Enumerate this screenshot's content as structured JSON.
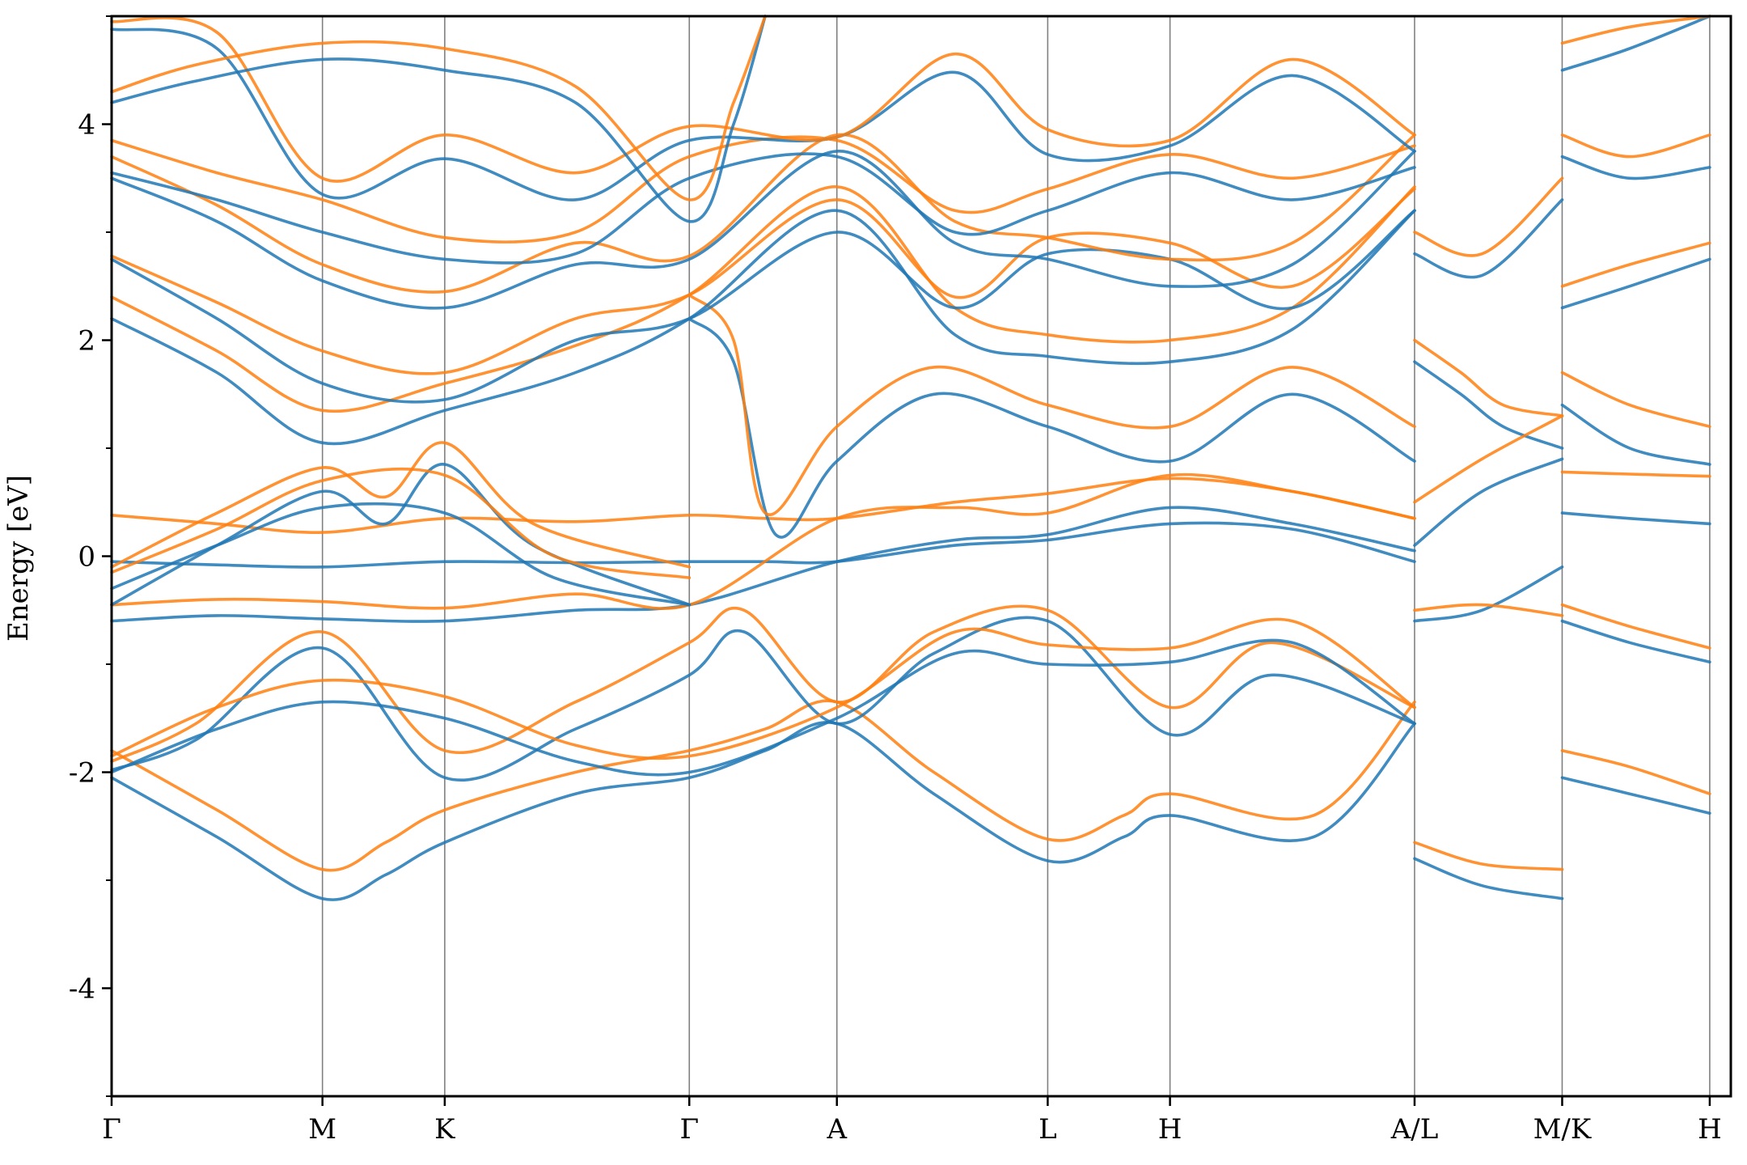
{
  "chart_data": {
    "type": "line",
    "title": "",
    "ylabel": "Energy [eV]",
    "xlabel": "",
    "ylim": [
      -5,
      5
    ],
    "yticks": [
      -4,
      -2,
      0,
      2,
      4
    ],
    "ytick_labels": [
      "-4",
      "-2",
      "0",
      "2",
      "4"
    ],
    "grid": "vertical lines at high-symmetry points",
    "legend": "none",
    "x_range": [
      0,
      7.68
    ],
    "kpoints": [
      {
        "label": "Γ",
        "x": 0.0
      },
      {
        "label": "M",
        "x": 1.0
      },
      {
        "label": "K",
        "x": 1.58
      },
      {
        "label": "Γ",
        "x": 2.74
      },
      {
        "label": "A",
        "x": 3.44
      },
      {
        "label": "L",
        "x": 4.44
      },
      {
        "label": "H",
        "x": 5.02
      },
      {
        "label": "A/L",
        "x": 6.18
      },
      {
        "label": "M/K",
        "x": 6.88
      },
      {
        "label": "H",
        "x": 7.58
      }
    ],
    "colors": {
      "spin_1": "#1f77b4",
      "spin_2": "#ff7f0e",
      "kpath_line": "#808080",
      "axis": "#000000"
    },
    "series": [
      {
        "color": "#1f77b4",
        "x": [
          0.0,
          0.5,
          1.0,
          1.3,
          1.58,
          2.2,
          2.74,
          3.1,
          3.44,
          3.9,
          4.44,
          4.8,
          5.02,
          5.7,
          6.18
        ],
        "y": [
          -2.05,
          -2.6,
          -3.17,
          -2.95,
          -2.65,
          -2.2,
          -2.05,
          -1.8,
          -1.55,
          -2.2,
          -2.82,
          -2.6,
          -2.4,
          -2.6,
          -1.55
        ]
      },
      {
        "color": "#ff7f0e",
        "x": [
          0.0,
          0.5,
          1.0,
          1.3,
          1.58,
          2.2,
          2.74,
          3.1,
          3.44,
          3.9,
          4.44,
          4.8,
          5.02,
          5.7,
          6.18
        ],
        "y": [
          -1.8,
          -2.35,
          -2.9,
          -2.65,
          -2.35,
          -2.0,
          -1.8,
          -1.6,
          -1.35,
          -2.0,
          -2.62,
          -2.4,
          -2.2,
          -2.4,
          -1.35
        ]
      },
      {
        "color": "#1f77b4",
        "x": [
          0.0,
          0.4,
          1.0,
          1.58,
          2.2,
          2.74,
          3.0,
          3.44,
          3.9,
          4.44,
          5.02,
          5.5,
          6.18
        ],
        "y": [
          -1.98,
          -1.7,
          -0.85,
          -2.05,
          -1.6,
          -1.1,
          -0.7,
          -1.55,
          -0.9,
          -0.6,
          -1.65,
          -1.1,
          -1.55
        ]
      },
      {
        "color": "#ff7f0e",
        "x": [
          0.0,
          0.4,
          1.0,
          1.58,
          2.2,
          2.74,
          3.0,
          3.44,
          3.9,
          4.44,
          5.02,
          5.5,
          6.18
        ],
        "y": [
          -1.9,
          -1.55,
          -0.7,
          -1.8,
          -1.35,
          -0.8,
          -0.5,
          -1.35,
          -0.7,
          -0.5,
          -1.4,
          -0.8,
          -1.4
        ]
      },
      {
        "color": "#1f77b4",
        "x": [
          0.0,
          0.5,
          1.0,
          1.58,
          2.2,
          2.74,
          3.44,
          4.0,
          4.44,
          5.02,
          5.6,
          6.18
        ],
        "y": [
          -2.0,
          -1.6,
          -1.35,
          -1.5,
          -1.9,
          -2.0,
          -1.5,
          -0.9,
          -1.0,
          -0.98,
          -0.8,
          -1.55
        ]
      },
      {
        "color": "#ff7f0e",
        "x": [
          0.0,
          0.5,
          1.0,
          1.58,
          2.2,
          2.74,
          3.44,
          4.0,
          4.44,
          5.02,
          5.6,
          6.18
        ],
        "y": [
          -1.85,
          -1.4,
          -1.15,
          -1.3,
          -1.75,
          -1.85,
          -1.4,
          -0.7,
          -0.82,
          -0.85,
          -0.6,
          -1.4
        ]
      },
      {
        "color": "#1f77b4",
        "x": [
          0.0,
          0.5,
          1.0,
          1.58,
          2.2,
          2.74,
          3.1,
          3.44,
          4.0,
          4.44,
          5.02,
          5.6,
          6.18
        ],
        "y": [
          -0.05,
          -0.08,
          -0.1,
          -0.05,
          -0.06,
          -0.05,
          -0.05,
          -0.05,
          0.1,
          0.15,
          0.3,
          0.25,
          -0.05
        ]
      },
      {
        "color": "#ff7f0e",
        "x": [
          0.0,
          0.5,
          1.0,
          1.58,
          2.2,
          2.74,
          3.1,
          3.44,
          4.0,
          4.44,
          5.02,
          5.6,
          6.18
        ],
        "y": [
          0.38,
          0.3,
          0.22,
          0.35,
          0.32,
          0.38,
          0.35,
          0.35,
          0.5,
          0.58,
          0.72,
          0.6,
          0.35
        ]
      },
      {
        "color": "#1f77b4",
        "x": [
          0.0,
          0.5,
          1.0,
          1.58,
          2.2,
          2.74,
          3.44,
          4.0,
          4.44,
          5.02,
          5.6,
          6.18
        ],
        "y": [
          -0.6,
          -0.55,
          -0.58,
          -0.6,
          -0.5,
          -0.45,
          -0.05,
          0.15,
          0.2,
          0.45,
          0.3,
          0.05
        ]
      },
      {
        "color": "#ff7f0e",
        "x": [
          0.0,
          0.5,
          1.0,
          1.58,
          2.2,
          2.74,
          3.44,
          4.0,
          4.44,
          5.02,
          5.6,
          6.18
        ],
        "y": [
          -0.45,
          -0.4,
          -0.42,
          -0.48,
          -0.35,
          -0.45,
          0.35,
          0.45,
          0.4,
          0.75,
          0.6,
          0.35
        ]
      },
      {
        "color": "#1f77b4",
        "x": [
          0.0,
          0.5,
          1.0,
          1.3,
          1.58,
          2.0,
          2.74
        ],
        "y": [
          -0.45,
          0.1,
          0.6,
          0.3,
          0.85,
          0.1,
          -0.45
        ]
      },
      {
        "color": "#ff7f0e",
        "x": [
          0.0,
          0.5,
          1.0,
          1.3,
          1.58,
          2.0,
          2.74
        ],
        "y": [
          -0.1,
          0.4,
          0.82,
          0.55,
          1.05,
          0.3,
          -0.1
        ]
      },
      {
        "color": "#1f77b4",
        "x": [
          0.0,
          0.5,
          1.0,
          1.58,
          2.1,
          2.74
        ],
        "y": [
          -0.3,
          0.1,
          0.45,
          0.4,
          -0.2,
          -0.45
        ]
      },
      {
        "color": "#ff7f0e",
        "x": [
          0.0,
          0.5,
          1.0,
          1.58,
          2.1,
          2.74
        ],
        "y": [
          -0.15,
          0.25,
          0.7,
          0.75,
          0.0,
          -0.2
        ]
      },
      {
        "color": "#1f77b4",
        "x": [
          2.74,
          2.95,
          3.15,
          3.44,
          3.9,
          4.44,
          5.02,
          5.6,
          6.18
        ],
        "y": [
          2.2,
          1.8,
          0.2,
          0.88,
          1.5,
          1.2,
          0.88,
          1.5,
          0.88
        ]
      },
      {
        "color": "#ff7f0e",
        "x": [
          2.74,
          2.95,
          3.1,
          3.44,
          3.9,
          4.44,
          5.02,
          5.6,
          6.18
        ],
        "y": [
          2.42,
          2.0,
          0.4,
          1.2,
          1.75,
          1.4,
          1.2,
          1.75,
          1.2
        ]
      },
      {
        "color": "#1f77b4",
        "x": [
          0.0,
          0.5,
          1.0,
          1.58,
          2.2,
          2.74,
          3.44,
          4.0,
          4.44,
          5.02,
          5.6,
          6.18
        ],
        "y": [
          2.2,
          1.7,
          1.05,
          1.35,
          1.7,
          2.2,
          3.2,
          2.05,
          1.85,
          1.8,
          2.1,
          3.2
        ]
      },
      {
        "color": "#ff7f0e",
        "x": [
          0.0,
          0.5,
          1.0,
          1.58,
          2.2,
          2.74,
          3.44,
          4.0,
          4.44,
          5.02,
          5.6,
          6.18
        ],
        "y": [
          2.4,
          1.9,
          1.35,
          1.6,
          1.95,
          2.42,
          3.42,
          2.3,
          2.05,
          2.0,
          2.3,
          3.42
        ]
      },
      {
        "color": "#1f77b4",
        "x": [
          0.0,
          0.5,
          1.0,
          1.58,
          2.2,
          2.74,
          3.44,
          4.0,
          4.44,
          5.02,
          5.6,
          6.18
        ],
        "y": [
          2.75,
          2.2,
          1.6,
          1.45,
          2.0,
          2.2,
          3.0,
          2.3,
          2.8,
          2.75,
          2.3,
          3.2
        ]
      },
      {
        "color": "#ff7f0e",
        "x": [
          0.0,
          0.5,
          1.0,
          1.58,
          2.2,
          2.74,
          3.44,
          4.0,
          4.44,
          5.02,
          5.6,
          6.18
        ],
        "y": [
          2.78,
          2.35,
          1.9,
          1.7,
          2.2,
          2.42,
          3.3,
          2.4,
          2.95,
          2.9,
          2.5,
          3.4
        ]
      },
      {
        "color": "#1f77b4",
        "x": [
          0.0,
          0.5,
          1.0,
          1.58,
          2.2,
          2.74,
          3.44,
          4.0,
          4.44,
          5.02,
          5.6,
          6.18
        ],
        "y": [
          3.5,
          3.1,
          2.55,
          2.3,
          2.7,
          2.75,
          3.75,
          2.9,
          2.75,
          2.5,
          2.7,
          3.75
        ]
      },
      {
        "color": "#ff7f0e",
        "x": [
          0.0,
          0.5,
          1.0,
          1.58,
          2.2,
          2.74,
          3.44,
          4.0,
          4.44,
          5.02,
          5.6,
          6.18
        ],
        "y": [
          3.7,
          3.25,
          2.7,
          2.45,
          2.9,
          2.78,
          3.9,
          3.1,
          2.95,
          2.75,
          2.9,
          3.9
        ]
      },
      {
        "color": "#1f77b4",
        "x": [
          0.0,
          0.5,
          1.0,
          1.58,
          2.2,
          2.74,
          3.44,
          4.0,
          4.44,
          5.02,
          5.6,
          6.18
        ],
        "y": [
          3.55,
          3.3,
          3.0,
          2.75,
          2.8,
          3.5,
          3.7,
          3.0,
          3.2,
          3.55,
          3.3,
          3.6
        ]
      },
      {
        "color": "#ff7f0e",
        "x": [
          0.0,
          0.5,
          1.0,
          1.58,
          2.2,
          2.74,
          3.44,
          4.0,
          4.44,
          5.02,
          5.6,
          6.18
        ],
        "y": [
          3.85,
          3.55,
          3.3,
          2.95,
          3.0,
          3.7,
          3.85,
          3.2,
          3.4,
          3.72,
          3.5,
          3.8
        ]
      },
      {
        "color": "#1f77b4",
        "x": [
          0.0,
          0.5,
          1.0,
          1.58,
          2.2,
          2.74,
          3.44,
          4.0,
          4.44,
          5.02,
          5.6,
          6.18
        ],
        "y": [
          4.88,
          4.7,
          3.35,
          3.68,
          3.3,
          3.85,
          3.88,
          4.48,
          3.72,
          3.8,
          4.45,
          3.75
        ]
      },
      {
        "color": "#ff7f0e",
        "x": [
          0.0,
          0.5,
          1.0,
          1.58,
          2.2,
          2.74,
          3.44,
          4.0,
          4.44,
          5.02,
          5.6,
          6.18
        ],
        "y": [
          4.95,
          4.85,
          3.5,
          3.9,
          3.55,
          3.98,
          3.88,
          4.65,
          3.95,
          3.85,
          4.6,
          3.9
        ]
      },
      {
        "color": "#1f77b4",
        "x": [
          0.0,
          0.4,
          1.0,
          1.58,
          2.2,
          2.74,
          2.95,
          3.1
        ],
        "y": [
          4.2,
          4.4,
          4.6,
          4.5,
          4.2,
          3.1,
          4.0,
          5.0
        ]
      },
      {
        "color": "#ff7f0e",
        "x": [
          0.0,
          0.4,
          1.0,
          1.58,
          2.2,
          2.74,
          2.95,
          3.1
        ],
        "y": [
          4.3,
          4.55,
          4.75,
          4.7,
          4.35,
          3.3,
          4.2,
          5.0
        ]
      },
      {
        "color": "#1f77b4",
        "x": [
          6.18,
          6.4,
          6.6,
          6.88
        ],
        "y": [
          1.8,
          1.5,
          1.2,
          1.0
        ]
      },
      {
        "color": "#ff7f0e",
        "x": [
          6.18,
          6.4,
          6.6,
          6.88
        ],
        "y": [
          2.0,
          1.7,
          1.4,
          1.3
        ]
      },
      {
        "color": "#1f77b4",
        "x": [
          6.18,
          6.5,
          6.88
        ],
        "y": [
          -2.8,
          -3.05,
          -3.17
        ]
      },
      {
        "color": "#ff7f0e",
        "x": [
          6.18,
          6.5,
          6.88
        ],
        "y": [
          -2.65,
          -2.85,
          -2.9
        ]
      },
      {
        "color": "#1f77b4",
        "x": [
          6.18,
          6.5,
          6.88
        ],
        "y": [
          -0.6,
          -0.5,
          -0.1
        ]
      },
      {
        "color": "#ff7f0e",
        "x": [
          6.18,
          6.5,
          6.88
        ],
        "y": [
          -0.5,
          -0.45,
          -0.55
        ]
      },
      {
        "color": "#1f77b4",
        "x": [
          6.18,
          6.5,
          6.88
        ],
        "y": [
          0.1,
          0.6,
          0.9
        ]
      },
      {
        "color": "#ff7f0e",
        "x": [
          6.18,
          6.5,
          6.88
        ],
        "y": [
          0.5,
          0.9,
          1.3
        ]
      },
      {
        "color": "#1f77b4",
        "x": [
          6.18,
          6.5,
          6.88
        ],
        "y": [
          2.8,
          2.6,
          3.3
        ]
      },
      {
        "color": "#ff7f0e",
        "x": [
          6.18,
          6.5,
          6.88
        ],
        "y": [
          3.0,
          2.8,
          3.5
        ]
      },
      {
        "color": "#1f77b4",
        "x": [
          6.88,
          7.2,
          7.58
        ],
        "y": [
          -2.05,
          -2.2,
          -2.38
        ]
      },
      {
        "color": "#ff7f0e",
        "x": [
          6.88,
          7.2,
          7.58
        ],
        "y": [
          -1.8,
          -1.95,
          -2.2
        ]
      },
      {
        "color": "#1f77b4",
        "x": [
          6.88,
          7.2,
          7.58
        ],
        "y": [
          -0.6,
          -0.8,
          -0.98
        ]
      },
      {
        "color": "#ff7f0e",
        "x": [
          6.88,
          7.2,
          7.58
        ],
        "y": [
          -0.45,
          -0.65,
          -0.85
        ]
      },
      {
        "color": "#1f77b4",
        "x": [
          6.88,
          7.2,
          7.58
        ],
        "y": [
          0.4,
          0.35,
          0.3
        ]
      },
      {
        "color": "#ff7f0e",
        "x": [
          6.88,
          7.2,
          7.58
        ],
        "y": [
          0.78,
          0.76,
          0.74
        ]
      },
      {
        "color": "#1f77b4",
        "x": [
          6.88,
          7.2,
          7.58
        ],
        "y": [
          1.4,
          1.0,
          0.85
        ]
      },
      {
        "color": "#ff7f0e",
        "x": [
          6.88,
          7.2,
          7.58
        ],
        "y": [
          1.7,
          1.4,
          1.2
        ]
      },
      {
        "color": "#1f77b4",
        "x": [
          6.88,
          7.2,
          7.58
        ],
        "y": [
          2.3,
          2.5,
          2.75
        ]
      },
      {
        "color": "#ff7f0e",
        "x": [
          6.88,
          7.2,
          7.58
        ],
        "y": [
          2.5,
          2.7,
          2.9
        ]
      },
      {
        "color": "#1f77b4",
        "x": [
          6.88,
          7.2,
          7.58
        ],
        "y": [
          3.7,
          3.5,
          3.6
        ]
      },
      {
        "color": "#ff7f0e",
        "x": [
          6.88,
          7.2,
          7.58
        ],
        "y": [
          3.9,
          3.7,
          3.9
        ]
      },
      {
        "color": "#1f77b4",
        "x": [
          6.88,
          7.2,
          7.58
        ],
        "y": [
          4.5,
          4.7,
          5.0
        ]
      },
      {
        "color": "#ff7f0e",
        "x": [
          6.88,
          7.2,
          7.58
        ],
        "y": [
          4.75,
          4.9,
          5.0
        ]
      }
    ]
  }
}
